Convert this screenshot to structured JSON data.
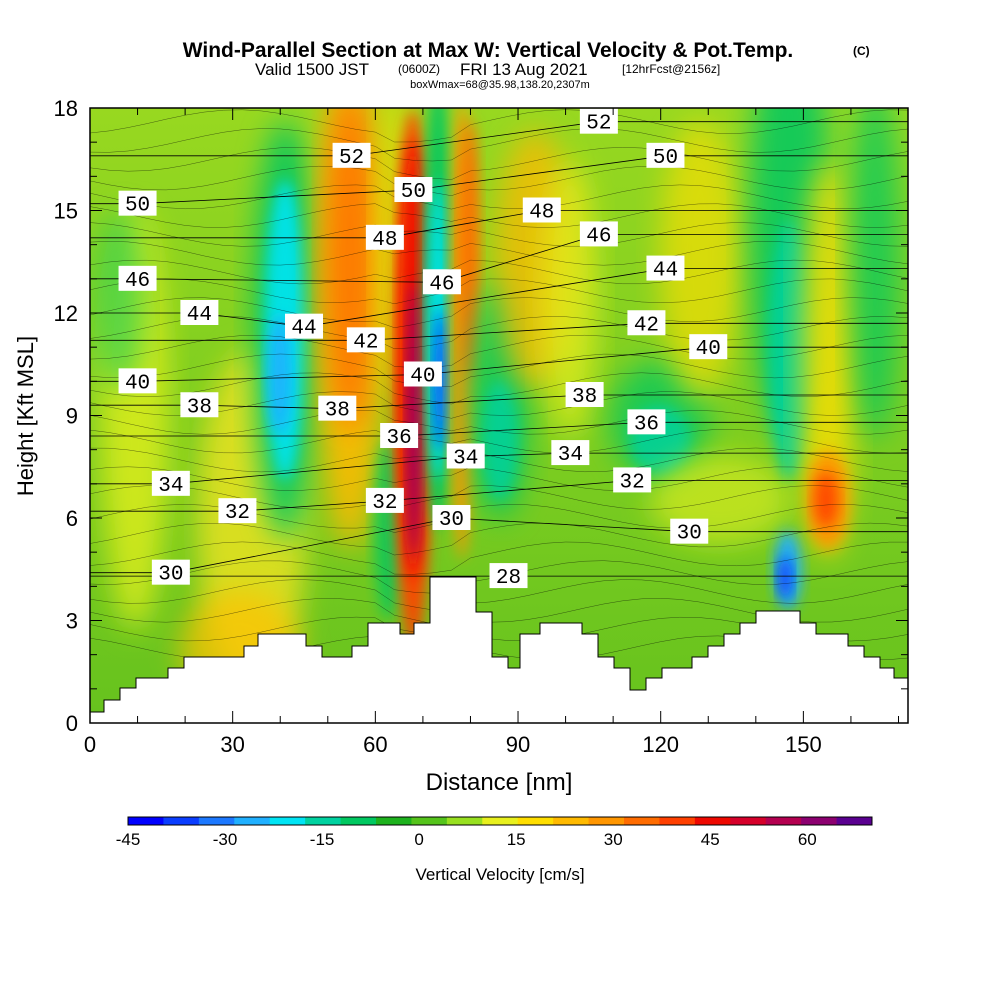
{
  "chart_data": {
    "type": "heatmap",
    "title": "Wind-Parallel Section at Max W: Vertical Velocity & Pot.Temp.",
    "title_mark": "(C)",
    "subtitle": {
      "valid": "Valid 1500 JST",
      "utc": "(0600Z)",
      "date": "FRI 13 Aug 2021",
      "forecast": "[12hrFcst@2156z]"
    },
    "info_line": "boxWmax=68@35.98,138.20,2307m",
    "xlabel": "Distance [nm]",
    "ylabel": "Height [Kft MSL]",
    "xlim": [
      0,
      172
    ],
    "ylim": [
      0,
      18
    ],
    "x_ticks": [
      "0",
      "30",
      "60",
      "90",
      "120",
      "150"
    ],
    "y_ticks": [
      "0",
      "3",
      "6",
      "9",
      "12",
      "15",
      "18"
    ],
    "colorbar": {
      "label": "Vertical Velocity [cm/s]",
      "min": -45,
      "max": 70,
      "tick_labels": [
        "-45",
        "-30",
        "-15",
        "0",
        "15",
        "30",
        "45",
        "60"
      ],
      "colors": [
        "#0000ff",
        "#0a3dff",
        "#1c78ff",
        "#20b0ff",
        "#00e4f4",
        "#00d2a0",
        "#00c860",
        "#1db21d",
        "#55c41b",
        "#98e020",
        "#e8f01e",
        "#ffde00",
        "#ffba00",
        "#ff9600",
        "#ff6c00",
        "#ff4000",
        "#ee0800",
        "#d6002a",
        "#b40050",
        "#8c0070",
        "#5a0090"
      ]
    },
    "theta_contour_labels": [
      {
        "text": "52",
        "x": 55,
        "y": 16.6
      },
      {
        "text": "52",
        "x": 107,
        "y": 17.6
      },
      {
        "text": "50",
        "x": 10,
        "y": 15.2
      },
      {
        "text": "50",
        "x": 68,
        "y": 15.6
      },
      {
        "text": "50",
        "x": 121,
        "y": 16.6
      },
      {
        "text": "48",
        "x": 62,
        "y": 14.2
      },
      {
        "text": "48",
        "x": 95,
        "y": 15.0
      },
      {
        "text": "46",
        "x": 10,
        "y": 13.0
      },
      {
        "text": "46",
        "x": 74,
        "y": 12.9
      },
      {
        "text": "46",
        "x": 107,
        "y": 14.3
      },
      {
        "text": "44",
        "x": 23,
        "y": 12.0
      },
      {
        "text": "44",
        "x": 45,
        "y": 11.6
      },
      {
        "text": "44",
        "x": 121,
        "y": 13.3
      },
      {
        "text": "42",
        "x": 58,
        "y": 11.2
      },
      {
        "text": "42",
        "x": 117,
        "y": 11.7
      },
      {
        "text": "40",
        "x": 10,
        "y": 10.0
      },
      {
        "text": "40",
        "x": 70,
        "y": 10.2
      },
      {
        "text": "40",
        "x": 130,
        "y": 11.0
      },
      {
        "text": "38",
        "x": 23,
        "y": 9.3
      },
      {
        "text": "38",
        "x": 52,
        "y": 9.2
      },
      {
        "text": "38",
        "x": 104,
        "y": 9.6
      },
      {
        "text": "36",
        "x": 65,
        "y": 8.4
      },
      {
        "text": "36",
        "x": 117,
        "y": 8.8
      },
      {
        "text": "34",
        "x": 17,
        "y": 7.0
      },
      {
        "text": "34",
        "x": 79,
        "y": 7.8
      },
      {
        "text": "34",
        "x": 101,
        "y": 7.9
      },
      {
        "text": "32",
        "x": 31,
        "y": 6.2
      },
      {
        "text": "32",
        "x": 62,
        "y": 6.5
      },
      {
        "text": "32",
        "x": 114,
        "y": 7.1
      },
      {
        "text": "30",
        "x": 17,
        "y": 4.4
      },
      {
        "text": "30",
        "x": 76,
        "y": 6.0
      },
      {
        "text": "30",
        "x": 126,
        "y": 5.6
      },
      {
        "text": "28",
        "x": 88,
        "y": 4.3
      }
    ]
  }
}
